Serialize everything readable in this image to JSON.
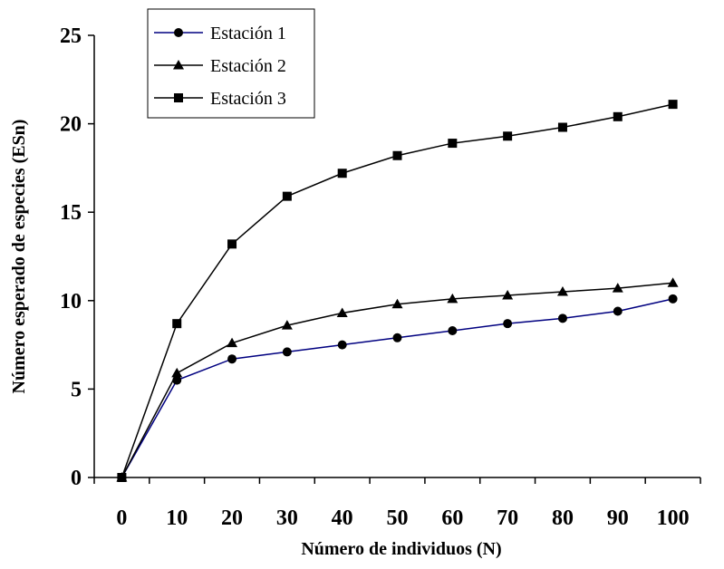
{
  "chart_data": {
    "type": "line",
    "xlabel": "Número de individuos (N)",
    "ylabel": "Número esperado de especies (ESn)",
    "ylim": [
      0,
      25
    ],
    "y_ticks": [
      "0",
      "5",
      "10",
      "15",
      "20",
      "25"
    ],
    "x_tick_labels": [
      "0",
      "10",
      "20",
      "30",
      "40",
      "50",
      "60",
      "70",
      "80",
      "90",
      "100"
    ],
    "x": [
      0,
      10,
      20,
      30,
      40,
      50,
      60,
      70,
      80,
      90,
      100
    ],
    "legend_position": "top-left",
    "series": [
      {
        "name": "Estación 1",
        "marker": "circle",
        "color": "#000080",
        "values": [
          0,
          5.5,
          6.7,
          7.1,
          7.5,
          7.9,
          8.3,
          8.7,
          9.0,
          9.4,
          10.1
        ]
      },
      {
        "name": "Estación 2",
        "marker": "triangle",
        "color": "#000000",
        "values": [
          0,
          5.9,
          7.6,
          8.6,
          9.3,
          9.8,
          10.1,
          10.3,
          10.5,
          10.7,
          11.0
        ]
      },
      {
        "name": "Estación 3",
        "marker": "square",
        "color": "#000000",
        "values": [
          0,
          8.7,
          13.2,
          15.9,
          17.2,
          18.2,
          18.9,
          19.3,
          19.8,
          20.4,
          21.1
        ]
      }
    ]
  }
}
